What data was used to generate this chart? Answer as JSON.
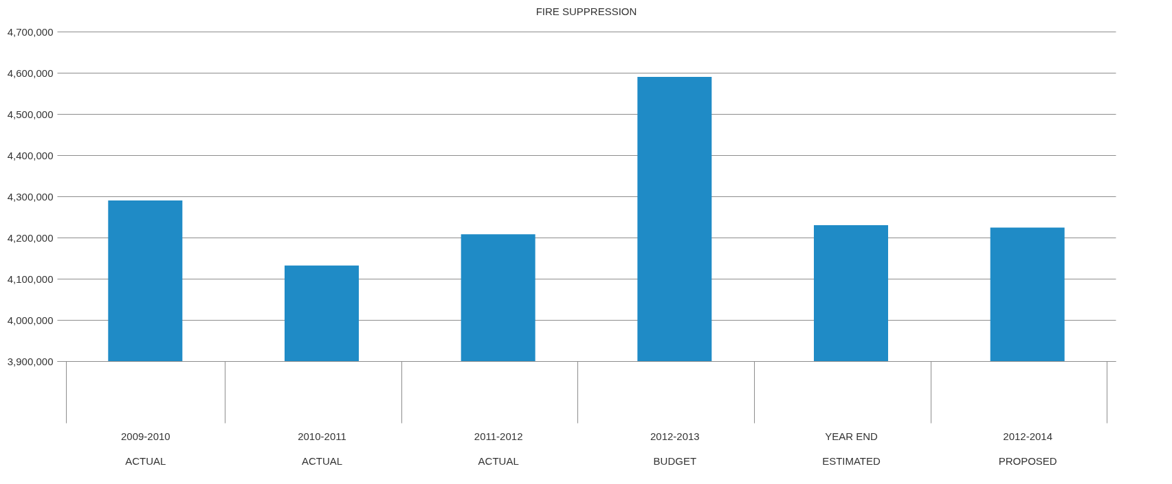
{
  "chart_data": {
    "type": "bar",
    "title": "FIRE SUPPRESSION",
    "categories": [
      "2009-2010\nACTUAL",
      "2010-2011\nACTUAL",
      "2011-2012\nACTUAL",
      "2012-2013\nBUDGET",
      "YEAR END\nESTIMATED",
      "2012-2014\nPROPOSED"
    ],
    "values": [
      4290000,
      4132000,
      4208000,
      4590000,
      4230000,
      4224000
    ],
    "color": "#1f8bc6",
    "ylim": [
      3900000,
      4700000
    ],
    "yticks": [
      {
        "value": 3900000,
        "label": "3,900,000"
      },
      {
        "value": 4000000,
        "label": "4,000,000"
      },
      {
        "value": 4100000,
        "label": "4,100,000"
      },
      {
        "value": 4200000,
        "label": "4,200,000"
      },
      {
        "value": 4300000,
        "label": "4,300,000"
      },
      {
        "value": 4400000,
        "label": "4,400,000"
      },
      {
        "value": 4500000,
        "label": "4,500,000"
      },
      {
        "value": 4600000,
        "label": "4,600,000"
      },
      {
        "value": 4700000,
        "label": "4,700,000"
      }
    ],
    "grid": "y"
  }
}
